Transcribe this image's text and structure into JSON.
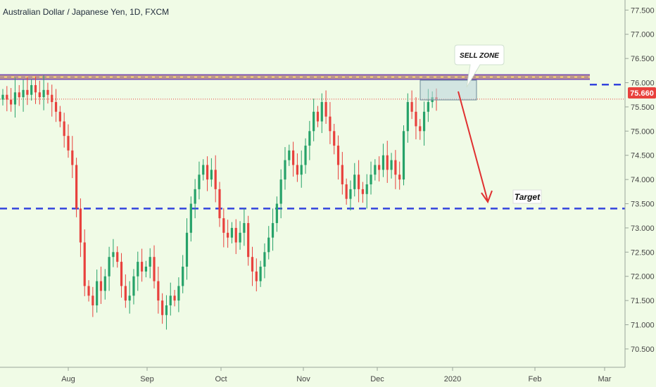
{
  "chart_data": {
    "type": "candlestick",
    "title": "Australian Dollar / Japanese Yen, 1D, FXCM",
    "y_ticks": [
      "77.500",
      "77.000",
      "76.500",
      "76.000",
      "75.500",
      "75.000",
      "74.500",
      "74.000",
      "73.500",
      "73.000",
      "72.500",
      "72.000",
      "71.500",
      "71.000",
      "70.500"
    ],
    "y_tick_values": [
      77.5,
      77.0,
      76.5,
      76.0,
      75.5,
      75.0,
      74.5,
      74.0,
      73.5,
      73.0,
      72.5,
      72.0,
      71.5,
      71.0,
      70.5
    ],
    "ylim": [
      70.15,
      77.65
    ],
    "x_ticks": [
      "Aug",
      "Sep",
      "Oct",
      "Nov",
      "Dec",
      "2020",
      "Feb",
      "Mar"
    ],
    "last_price": "75.660",
    "last_price_value": 75.66,
    "resistance_level": 75.96,
    "target_level": 73.4,
    "colors": {
      "up": "#26a269",
      "down": "#e8413d",
      "resistance_line": "#3344dd",
      "target_line": "#3344dd",
      "arrow": "#e03030",
      "price_badge": "#e8413d"
    },
    "annotations": {
      "sell_zone": "SELL ZONE",
      "target": "Target"
    },
    "closes": [
      75.75,
      75.65,
      75.55,
      75.8,
      75.7,
      75.85,
      75.75,
      75.95,
      75.8,
      75.7,
      75.85,
      75.75,
      75.6,
      75.4,
      75.2,
      74.9,
      74.6,
      74.3,
      73.4,
      72.7,
      71.8,
      71.6,
      71.4,
      71.9,
      71.7,
      72.0,
      72.4,
      72.5,
      72.3,
      71.8,
      71.5,
      71.6,
      72.0,
      72.3,
      72.1,
      72.2,
      72.4,
      71.9,
      71.5,
      71.2,
      71.4,
      71.6,
      71.5,
      71.8,
      72.2,
      72.9,
      73.5,
      73.8,
      74.1,
      74.3,
      74.0,
      74.2,
      73.8,
      73.2,
      72.9,
      72.8,
      73.0,
      72.7,
      72.9,
      73.1,
      72.4,
      72.1,
      71.9,
      72.2,
      72.5,
      72.8,
      73.1,
      73.5,
      74.0,
      74.4,
      74.6,
      74.3,
      74.1,
      74.3,
      74.7,
      75.0,
      75.4,
      75.2,
      75.6,
      75.3,
      75.0,
      74.7,
      74.3,
      73.9,
      73.6,
      73.8,
      74.1,
      73.8,
      73.7,
      73.9,
      74.1,
      74.3,
      74.2,
      74.5,
      74.2,
      74.4,
      74.1,
      74.0,
      75.0,
      75.6,
      75.4,
      75.1,
      75.0,
      75.4,
      75.6,
      75.7,
      75.66
    ]
  }
}
